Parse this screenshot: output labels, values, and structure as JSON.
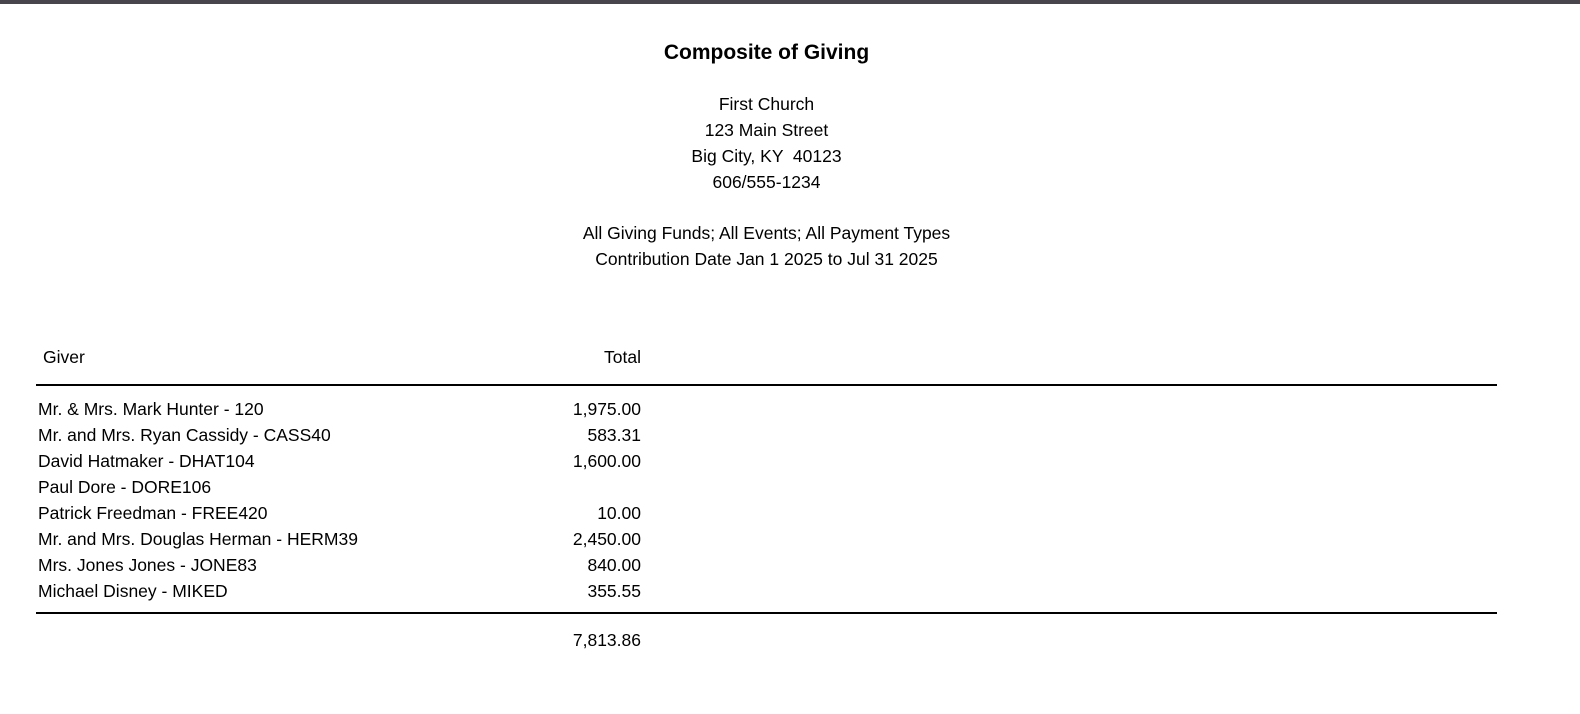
{
  "page": {
    "title": "Composite of Giving",
    "organization": {
      "name": "First Church",
      "address_line1": "123 Main Street",
      "address_line2": "Big City, KY  40123",
      "phone": "606/555-1234"
    },
    "criteria": {
      "filters": "All Giving Funds; All Events; All Payment Types",
      "date_range": "Contribution Date Jan 1 2025 to Jul 31 2025"
    },
    "table": {
      "columns": {
        "giver": "Giver",
        "total": "Total"
      },
      "rows": [
        {
          "giver": "Mr. & Mrs. Mark Hunter - 120",
          "total": "1,975.00"
        },
        {
          "giver": "Mr. and Mrs. Ryan Cassidy - CASS40",
          "total": "583.31"
        },
        {
          "giver": "David Hatmaker - DHAT104",
          "total": "1,600.00"
        },
        {
          "giver": "Paul Dore - DORE106",
          "total": ""
        },
        {
          "giver": "Patrick Freedman - FREE420",
          "total": "10.00"
        },
        {
          "giver": "Mr. and Mrs. Douglas Herman - HERM39",
          "total": "2,450.00"
        },
        {
          "giver": "Mrs. Jones Jones - JONE83",
          "total": "840.00"
        },
        {
          "giver": "Michael Disney - MIKED",
          "total": "355.55"
        }
      ],
      "grand_total": "7,813.86"
    }
  },
  "colors": {
    "top_bar": "#49454c",
    "text": "#000000",
    "background": "#ffffff",
    "rule": "#000000"
  }
}
